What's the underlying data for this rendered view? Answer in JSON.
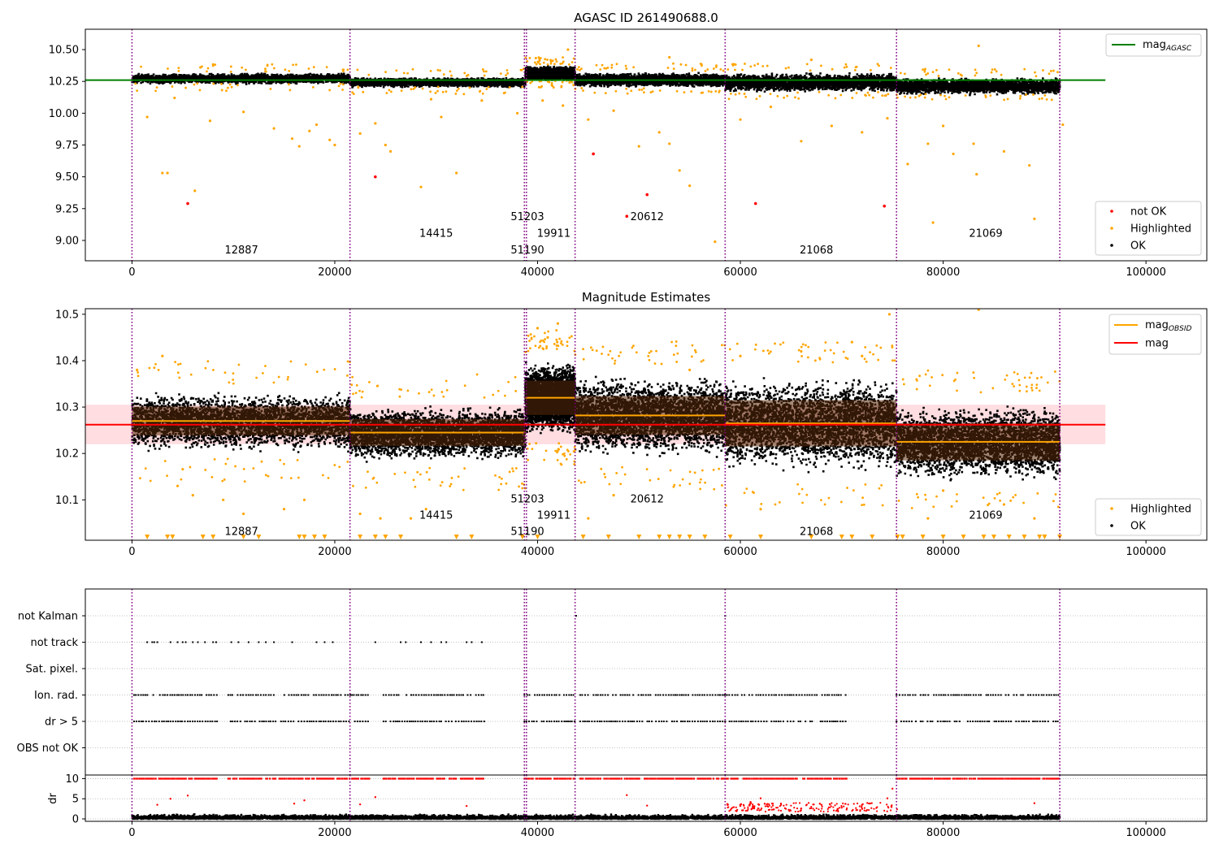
{
  "figure": {
    "title": "AGASC ID 261490688.0"
  },
  "chart_data": [
    {
      "type": "scatter",
      "title": "AGASC ID 261490688.0",
      "xlabel": "",
      "ylabel": "",
      "xlim": [
        -4600,
        106000
      ],
      "ylim": [
        8.84,
        10.66
      ],
      "xticks": [
        0,
        20000,
        40000,
        60000,
        80000,
        100000
      ],
      "yticks": [
        9.0,
        9.25,
        9.5,
        9.75,
        10.0,
        10.25,
        10.5
      ],
      "ytick_labels": [
        "9.00",
        "9.25",
        "9.50",
        "9.75",
        "10.00",
        "10.25",
        "10.50"
      ],
      "obsid_boundaries": [
        0,
        21500,
        38700,
        38900,
        43700,
        58500,
        75400,
        91500
      ],
      "obsid_labels": [
        {
          "text": "12887",
          "x": 10800,
          "y": 8.93
        },
        {
          "text": "14415",
          "x": 30000,
          "y": 9.06
        },
        {
          "text": "51203",
          "x": 39000,
          "y": 9.19
        },
        {
          "text": "19911",
          "x": 41600,
          "y": 9.06
        },
        {
          "text": "51190",
          "x": 39000,
          "y": 8.93
        },
        {
          "text": "20612",
          "x": 50800,
          "y": 9.19
        },
        {
          "text": "21068",
          "x": 67500,
          "y": 8.93
        },
        {
          "text": "21069",
          "x": 84200,
          "y": 9.06
        }
      ],
      "lines": [
        {
          "name": "mag_AGASC",
          "color": "#008000",
          "y": 10.26,
          "x": [
            -4600,
            96000
          ]
        }
      ],
      "ok_bands": [
        {
          "x": [
            0,
            21500
          ],
          "center": 10.28,
          "half": 0.045
        },
        {
          "x": [
            21500,
            38800
          ],
          "center": 10.25,
          "half": 0.04
        },
        {
          "x": [
            38800,
            43700
          ],
          "center": 10.32,
          "half": 0.06
        },
        {
          "x": [
            43700,
            58500
          ],
          "center": 10.27,
          "half": 0.06
        },
        {
          "x": [
            58500,
            75400
          ],
          "center": 10.25,
          "half": 0.08
        },
        {
          "x": [
            75400,
            91500
          ],
          "center": 10.22,
          "half": 0.07
        }
      ],
      "series": [
        {
          "name": "not OK",
          "color": "#ff0000",
          "points": [
            [
              5500,
              9.29
            ],
            [
              24000,
              9.5
            ],
            [
              45500,
              9.68
            ],
            [
              48800,
              9.19
            ],
            [
              50800,
              9.36
            ],
            [
              61500,
              9.29
            ],
            [
              74200,
              9.27
            ]
          ]
        },
        {
          "name": "Highlighted",
          "color": "#ffa500",
          "points": [
            [
              1500,
              9.97
            ],
            [
              3000,
              9.53
            ],
            [
              3500,
              9.53
            ],
            [
              4200,
              10.12
            ],
            [
              6200,
              9.39
            ],
            [
              7700,
              9.94
            ],
            [
              11000,
              10.01
            ],
            [
              14000,
              9.88
            ],
            [
              15800,
              9.8
            ],
            [
              16500,
              9.74
            ],
            [
              17500,
              9.86
            ],
            [
              18200,
              9.91
            ],
            [
              19500,
              9.79
            ],
            [
              20000,
              9.75
            ],
            [
              22500,
              9.84
            ],
            [
              24000,
              9.92
            ],
            [
              25000,
              9.75
            ],
            [
              25500,
              9.7
            ],
            [
              28500,
              9.42
            ],
            [
              29500,
              10.11
            ],
            [
              30500,
              9.97
            ],
            [
              32000,
              9.53
            ],
            [
              34500,
              10.1
            ],
            [
              38000,
              10.0
            ],
            [
              40500,
              10.1
            ],
            [
              42500,
              10.06
            ],
            [
              45000,
              9.95
            ],
            [
              47500,
              10.02
            ],
            [
              50000,
              9.74
            ],
            [
              52000,
              9.85
            ],
            [
              53000,
              9.76
            ],
            [
              54000,
              9.55
            ],
            [
              55000,
              9.43
            ],
            [
              57500,
              8.99
            ],
            [
              60000,
              9.95
            ],
            [
              63000,
              10.05
            ],
            [
              66000,
              9.78
            ],
            [
              69000,
              9.9
            ],
            [
              72000,
              9.85
            ],
            [
              74500,
              9.96
            ],
            [
              76500,
              9.6
            ],
            [
              78500,
              9.76
            ],
            [
              80000,
              9.9
            ],
            [
              81000,
              9.68
            ],
            [
              83000,
              9.76
            ],
            [
              83300,
              9.52
            ],
            [
              83500,
              10.53
            ],
            [
              86000,
              9.7
            ],
            [
              88500,
              9.59
            ],
            [
              89000,
              9.17
            ],
            [
              91800,
              9.91
            ],
            [
              79000,
              9.14
            ],
            [
              53000,
              10.44
            ],
            [
              43000,
              10.5
            ],
            [
              67000,
              10.42
            ]
          ]
        }
      ],
      "legend": [
        "mag_AGASC",
        "not OK",
        "Highlighted",
        "OK"
      ]
    },
    {
      "type": "scatter",
      "title": "Magnitude Estimates",
      "xlabel": "",
      "ylabel": "",
      "xlim": [
        -4600,
        106000
      ],
      "ylim": [
        10.013,
        10.512
      ],
      "xticks": [
        0,
        20000,
        40000,
        60000,
        80000,
        100000
      ],
      "yticks": [
        10.1,
        10.2,
        10.3,
        10.4,
        10.5
      ],
      "obsid_labels": [
        {
          "text": "12887",
          "x": 10800,
          "y": 10.033
        },
        {
          "text": "14415",
          "x": 30000,
          "y": 10.068
        },
        {
          "text": "51203",
          "x": 39000,
          "y": 10.103
        },
        {
          "text": "19911",
          "x": 41600,
          "y": 10.068
        },
        {
          "text": "51190",
          "x": 39000,
          "y": 10.033
        },
        {
          "text": "20612",
          "x": 50800,
          "y": 10.103
        },
        {
          "text": "21068",
          "x": 67500,
          "y": 10.033
        },
        {
          "text": "21069",
          "x": 84200,
          "y": 10.068
        }
      ],
      "mag": {
        "name": "mag",
        "color": "#ff0000",
        "y": 10.262,
        "x": [
          -4600,
          96000
        ],
        "band": [
          10.22,
          10.305
        ]
      },
      "obsid_segments": [
        {
          "x": [
            0,
            21500
          ],
          "mag": 10.27,
          "std": 0.031
        },
        {
          "x": [
            21500,
            38800
          ],
          "mag": 10.245,
          "std": 0.029
        },
        {
          "x": [
            38800,
            43700
          ],
          "mag": 10.32,
          "std": 0.037
        },
        {
          "x": [
            43700,
            58500
          ],
          "mag": 10.282,
          "std": 0.042
        },
        {
          "x": [
            58500,
            75400
          ],
          "mag": 10.265,
          "std": 0.05
        },
        {
          "x": [
            75400,
            91500
          ],
          "mag": 10.225,
          "std": 0.04
        }
      ],
      "series": [
        {
          "name": "Highlighted",
          "color": "#ffa500",
          "points": [
            [
              500,
              10.38
            ],
            [
              3000,
              10.41
            ],
            [
              4500,
              10.13
            ],
            [
              6000,
              10.11
            ],
            [
              9000,
              10.1
            ],
            [
              11000,
              10.07
            ],
            [
              15000,
              10.08
            ],
            [
              17000,
              10.1
            ],
            [
              22500,
              10.07
            ],
            [
              24500,
              10.06
            ],
            [
              27500,
              10.06
            ],
            [
              29000,
              10.08
            ],
            [
              40000,
              10.47
            ],
            [
              41000,
              10.45
            ],
            [
              42000,
              10.48
            ],
            [
              45000,
              10.06
            ],
            [
              47500,
              10.11
            ],
            [
              55000,
              10.38
            ],
            [
              60000,
              10.41
            ],
            [
              62000,
              10.08
            ],
            [
              66000,
              10.42
            ],
            [
              71000,
              10.44
            ],
            [
              72000,
              10.41
            ],
            [
              74700,
              10.5
            ],
            [
              78500,
              10.06
            ],
            [
              80000,
              10.12
            ],
            [
              83500,
              10.51
            ],
            [
              86000,
              10.09
            ],
            [
              89000,
              10.06
            ]
          ]
        }
      ],
      "censored_triangles": [
        1500,
        3500,
        4000,
        7000,
        8000,
        11000,
        12500,
        16500,
        17000,
        18000,
        19000,
        22500,
        24000,
        25000,
        26500,
        32000,
        33500,
        38500,
        40000,
        44500,
        47000,
        50000,
        52000,
        53000,
        54000,
        55000,
        56500,
        59000,
        62000,
        67000,
        70000,
        71000,
        73000,
        75500,
        76000,
        78000,
        80000,
        82000,
        84000,
        85000,
        86500,
        88000,
        89500,
        90000,
        91500
      ],
      "legend": [
        "mag_OBSID",
        "mag",
        "Highlighted",
        "OK"
      ]
    },
    {
      "type": "scatter",
      "title": "",
      "xlabel": "",
      "ylabel": "",
      "xlim": [
        -4600,
        106000
      ],
      "categories": [
        "not Kalman",
        "not track",
        "Sat. pixel.",
        "Ion. rad.",
        "dr > 5",
        "OBS not OK"
      ],
      "rows": [
        {
          "name": "not Kalman",
          "x": [
            43800,
            58500
          ]
        },
        {
          "name": "not track",
          "x": [
            1500,
            2000,
            2200,
            2500,
            3800,
            4500,
            5000,
            5300,
            6000,
            6500,
            7200,
            8000,
            8300,
            9800,
            10500,
            11500,
            12500,
            13200,
            14000,
            15800,
            18200,
            19000,
            19800,
            24000,
            26500,
            27000,
            28500,
            29500,
            30500,
            31000,
            33000,
            33500,
            34500
          ]
        },
        {
          "name": "Sat. pixel.",
          "x": []
        },
        {
          "name": "Ion. rad.",
          "ranges": [
            [
              200,
              8500
            ],
            [
              9500,
              21600
            ],
            [
              21700,
              23500
            ],
            [
              24800,
              34800
            ],
            [
              38700,
              43700
            ],
            [
              44200,
              58500
            ],
            [
              58500,
              70500
            ],
            [
              75400,
              91500
            ]
          ]
        },
        {
          "name": "dr > 5",
          "ranges": [
            [
              200,
              8500
            ],
            [
              9500,
              21600
            ],
            [
              21700,
              23500
            ],
            [
              24800,
              34800
            ],
            [
              38700,
              43700
            ],
            [
              44200,
              58500
            ],
            [
              58500,
              70500
            ],
            [
              75400,
              91500
            ]
          ]
        },
        {
          "name": "OBS not OK",
          "x": []
        }
      ]
    },
    {
      "type": "scatter",
      "title": "",
      "xlabel": "",
      "ylabel": "dr",
      "xlim": [
        -4600,
        106000
      ],
      "ylim": [
        -0.6,
        10.9
      ],
      "xticks": [
        0,
        20000,
        40000,
        60000,
        80000,
        100000
      ],
      "yticks": [
        0,
        5,
        10
      ],
      "clip_value": 10,
      "series": [
        {
          "name": "dr",
          "color": "#000000",
          "ranges": [
            [
              0,
              91500
            ]
          ],
          "typical": [
            0,
            1.6
          ]
        },
        {
          "name": "dr > 5",
          "color": "#ff0000",
          "points": [
            [
              2500,
              3.5
            ],
            [
              3800,
              5
            ],
            [
              5500,
              5.8
            ],
            [
              16000,
              3.8
            ],
            [
              17000,
              4.6
            ],
            [
              22500,
              3.6
            ],
            [
              24000,
              5.4
            ],
            [
              33000,
              3.2
            ],
            [
              48800,
              5.9
            ],
            [
              50800,
              3.3
            ],
            [
              60000,
              3.2
            ],
            [
              61000,
              4.2
            ],
            [
              62000,
              5.1
            ],
            [
              64000,
              3.8
            ],
            [
              66000,
              2.6
            ],
            [
              68000,
              3.5
            ],
            [
              70000,
              2.8
            ],
            [
              72000,
              3.5
            ],
            [
              74500,
              5.1
            ],
            [
              75000,
              7.5
            ],
            [
              89000,
              3.9
            ]
          ]
        }
      ]
    }
  ]
}
